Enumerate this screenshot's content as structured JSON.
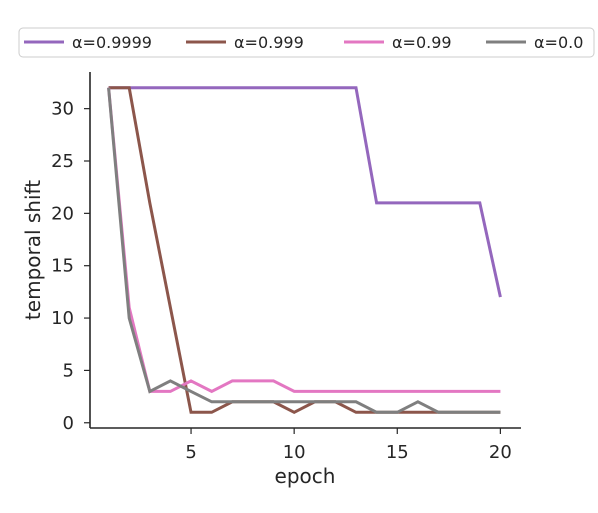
{
  "chart_data": {
    "type": "line",
    "title": "",
    "xlabel": "epoch",
    "ylabel": "temporal shift",
    "xlim": [
      0.1,
      21
    ],
    "ylim": [
      -0.5,
      33.5
    ],
    "xticks": [
      5,
      10,
      15,
      20
    ],
    "yticks": [
      0,
      5,
      10,
      15,
      20,
      25,
      30
    ],
    "xtick_labels": [
      "5",
      "10",
      "15",
      "20"
    ],
    "ytick_labels": [
      "0",
      "5",
      "10",
      "15",
      "20",
      "25",
      "30"
    ],
    "grid": false,
    "legend_position": "top",
    "x": [
      1,
      2,
      3,
      4,
      5,
      6,
      7,
      8,
      9,
      10,
      11,
      12,
      13,
      14,
      15,
      16,
      17,
      18,
      19,
      20
    ],
    "series": [
      {
        "name": "α=0.9999",
        "color": "#9467bd",
        "values": [
          32,
          32,
          32,
          32,
          32,
          32,
          32,
          32,
          32,
          32,
          32,
          32,
          32,
          21,
          21,
          21,
          21,
          21,
          21,
          12
        ]
      },
      {
        "name": "α=0.999",
        "color": "#8c564b",
        "values": [
          32,
          32,
          21,
          11,
          1,
          1,
          2,
          2,
          2,
          1,
          2,
          2,
          1,
          1,
          1,
          1,
          1,
          1,
          1,
          1
        ]
      },
      {
        "name": "α=0.99",
        "color": "#e377c2",
        "values": [
          32,
          11,
          3,
          3,
          4,
          3,
          4,
          4,
          4,
          3,
          3,
          3,
          3,
          3,
          3,
          3,
          3,
          3,
          3,
          3
        ]
      },
      {
        "name": "α=0.0",
        "color": "#7f7f7f",
        "values": [
          32,
          10,
          3,
          4,
          3,
          2,
          2,
          2,
          2,
          2,
          2,
          2,
          2,
          1,
          1,
          2,
          1,
          1,
          1,
          1
        ]
      }
    ]
  }
}
